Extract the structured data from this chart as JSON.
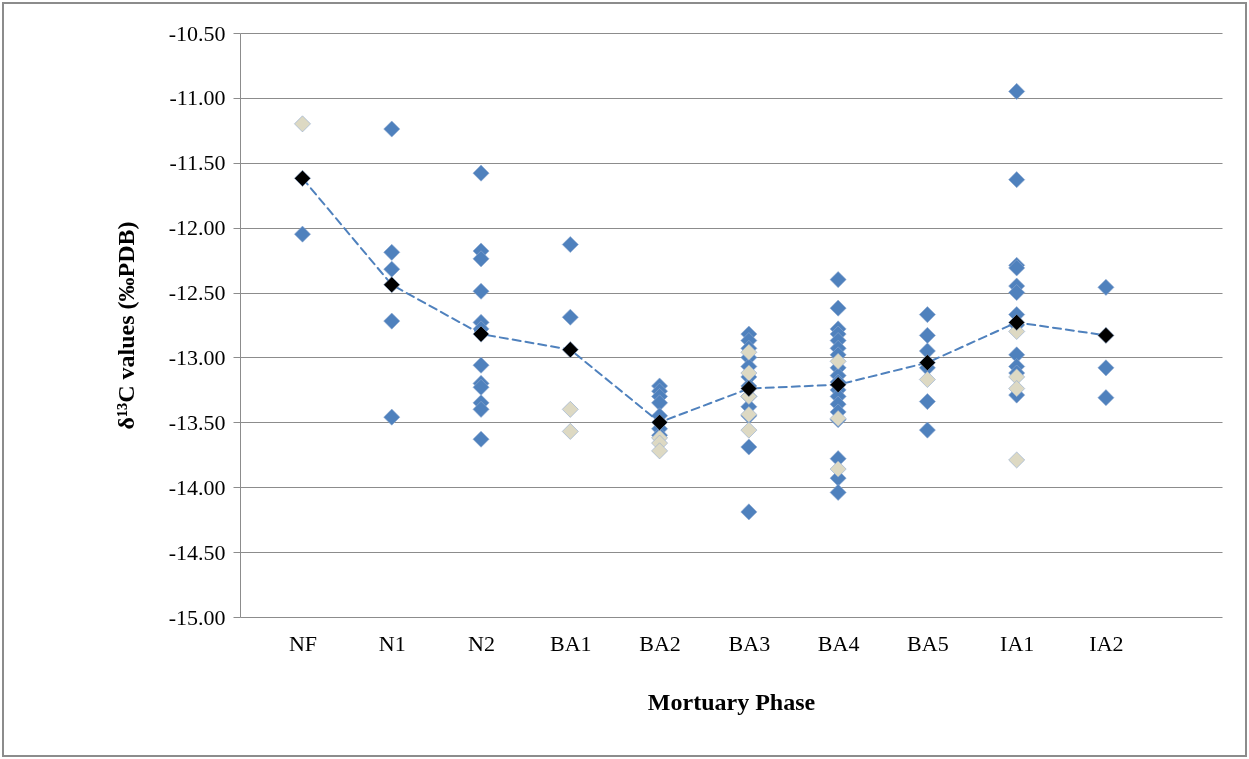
{
  "chart_data": {
    "type": "scatter",
    "xlabel": "Mortuary Phase",
    "ylabel": "δ¹³C values (‰PDB)",
    "categories": [
      "NF",
      "N1",
      "N2",
      "BA1",
      "BA2",
      "BA3",
      "BA4",
      "BA5",
      "IA1",
      "IA2"
    ],
    "ylim": [
      -15,
      -10.5
    ],
    "yticks": [
      {
        "value": -15,
        "label": "-15.00"
      },
      {
        "value": -14.5,
        "label": "-14.50"
      },
      {
        "value": -14,
        "label": "-14.00"
      },
      {
        "value": -13.5,
        "label": "-13.50"
      },
      {
        "value": -13,
        "label": "-13.00"
      },
      {
        "value": -12.5,
        "label": "-12.50"
      },
      {
        "value": -12,
        "label": "-12.00"
      },
      {
        "value": -11.5,
        "label": "-11.50"
      },
      {
        "value": -11,
        "label": "-11.00"
      },
      {
        "value": -10.5,
        "label": "-10.50"
      }
    ],
    "grid": "y",
    "marker": "diamond",
    "series": [
      {
        "color": "#4f81bd",
        "x": [
          "NF",
          "N1",
          "N1",
          "N1",
          "N1",
          "N1",
          "N2",
          "N2",
          "N2",
          "N2",
          "N2",
          "N2",
          "N2",
          "N2",
          "N2",
          "N2",
          "N2",
          "N2",
          "BA1",
          "BA1",
          "BA2",
          "BA2",
          "BA2",
          "BA2",
          "BA2",
          "BA2",
          "BA2",
          "BA3",
          "BA3",
          "BA3",
          "BA3",
          "BA3",
          "BA3",
          "BA3",
          "BA3",
          "BA3",
          "BA3",
          "BA3",
          "BA3",
          "BA4",
          "BA4",
          "BA4",
          "BA4",
          "BA4",
          "BA4",
          "BA4",
          "BA4",
          "BA4",
          "BA4",
          "BA4",
          "BA4",
          "BA4",
          "BA4",
          "BA4",
          "BA4",
          "BA4",
          "BA4",
          "BA4",
          "BA5",
          "BA5",
          "BA5",
          "BA5",
          "BA5",
          "BA5",
          "IA1",
          "IA1",
          "IA1",
          "IA1",
          "IA1",
          "IA1",
          "IA1",
          "IA1",
          "IA1",
          "IA1",
          "IA1",
          "IA1",
          "IA2",
          "IA2",
          "IA2"
        ],
        "values": [
          -12.05,
          -11.24,
          -12.19,
          -12.32,
          -12.72,
          -13.46,
          -11.58,
          -12.18,
          -12.24,
          -12.49,
          -12.73,
          -12.78,
          -13.06,
          -13.2,
          -13.23,
          -13.35,
          -13.4,
          -13.63,
          -12.13,
          -12.69,
          -13.22,
          -13.26,
          -13.3,
          -13.35,
          -13.45,
          -13.55,
          -13.6,
          -12.82,
          -12.87,
          -12.93,
          -13,
          -13.07,
          -13.15,
          -13.22,
          -13.3,
          -13.38,
          -13.45,
          -13.69,
          -14.19,
          -12.4,
          -12.62,
          -12.78,
          -12.82,
          -12.87,
          -12.93,
          -12.98,
          null,
          -13.08,
          -13.14,
          -13.19,
          -13.25,
          -13.3,
          -13.36,
          -13.42,
          -13.48,
          -13.78,
          -13.93,
          -14.04,
          -12.67,
          -12.83,
          -12.95,
          -13.08,
          -13.34,
          -13.56,
          -10.95,
          -11.63,
          -12.29,
          -12.31,
          -12.45,
          -12.5,
          -12.67,
          -12.75,
          -12.98,
          -13.07,
          -13.12,
          -13.29,
          -12.46,
          -13.08,
          -13.31
        ]
      },
      {
        "color": "#ddd9c3",
        "x": [
          "NF",
          "BA1",
          "BA1",
          "BA1",
          "BA2",
          "BA2",
          "BA2",
          "BA2",
          "BA3",
          "BA3",
          "BA3",
          "BA3",
          "BA3",
          "BA4",
          "BA4",
          "BA4",
          "BA5",
          "BA5",
          "IA1",
          "IA1",
          "IA1",
          "IA1"
        ],
        "values": [
          -11.2,
          null,
          -13.4,
          -13.57,
          -13.62,
          -13.66,
          null,
          -13.72,
          -12.96,
          -13.12,
          -13.3,
          -13.44,
          -13.56,
          -13.03,
          -13.47,
          -13.86,
          null,
          -13.17,
          -12.8,
          -13.15,
          -13.24,
          -13.79
        ]
      },
      {
        "type": "line",
        "color": "#4f81bd",
        "line_style": "dashed",
        "marker": "none",
        "x": [
          "NF",
          "N1",
          "N2",
          "BA1",
          "BA2",
          "BA3",
          "BA4",
          "BA5",
          "IA1",
          "IA2"
        ],
        "values": [
          -11.62,
          -12.44,
          -12.82,
          -12.94,
          -13.5,
          -13.24,
          -13.21,
          -13.04,
          -12.73,
          -12.83
        ]
      },
      {
        "color": "#000000",
        "x": [
          "NF",
          "N1",
          "N2",
          "BA1",
          "BA2",
          "BA3",
          "BA4",
          "BA5",
          "IA1",
          "IA2"
        ],
        "values": [
          -11.62,
          -12.44,
          -12.82,
          -12.94,
          -13.5,
          -13.24,
          -13.21,
          -13.04,
          -12.73,
          -12.83
        ]
      }
    ]
  }
}
